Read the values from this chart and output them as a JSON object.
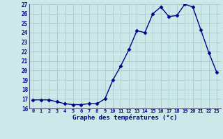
{
  "x": [
    0,
    1,
    2,
    3,
    4,
    5,
    6,
    7,
    8,
    9,
    10,
    11,
    12,
    13,
    14,
    15,
    16,
    17,
    18,
    19,
    20,
    21,
    22,
    23
  ],
  "y": [
    16.9,
    16.9,
    16.9,
    16.7,
    16.5,
    16.4,
    16.4,
    16.5,
    16.5,
    17.0,
    19.0,
    20.5,
    22.2,
    24.2,
    24.0,
    26.0,
    26.7,
    25.7,
    25.8,
    27.0,
    26.7,
    24.3,
    21.9,
    19.8
  ],
  "line_color": "#00008B",
  "marker": "D",
  "marker_size": 2.5,
  "bg_color": "#cce8e8",
  "grid_color": "#aacccc",
  "xlabel": "Graphe des températures (°c)",
  "xlabel_color": "#00008B",
  "tick_color": "#00008B",
  "ylim": [
    16,
    27
  ],
  "yticks": [
    16,
    17,
    18,
    19,
    20,
    21,
    22,
    23,
    24,
    25,
    26,
    27
  ],
  "xticks": [
    0,
    1,
    2,
    3,
    4,
    5,
    6,
    7,
    8,
    9,
    10,
    11,
    12,
    13,
    14,
    15,
    16,
    17,
    18,
    19,
    20,
    21,
    22,
    23
  ],
  "xlim": [
    -0.5,
    23.5
  ]
}
